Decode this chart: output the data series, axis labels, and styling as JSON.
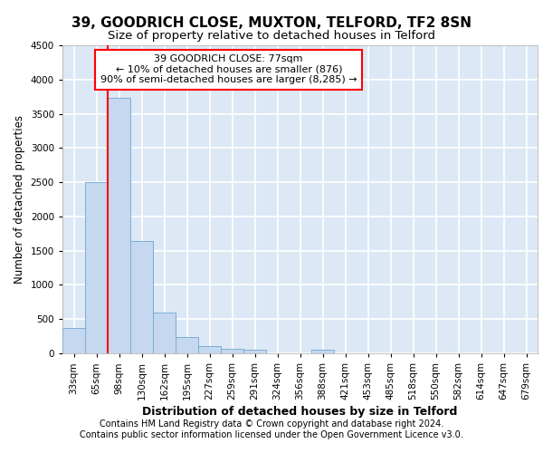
{
  "title1": "39, GOODRICH CLOSE, MUXTON, TELFORD, TF2 8SN",
  "title2": "Size of property relative to detached houses in Telford",
  "xlabel": "Distribution of detached houses by size in Telford",
  "ylabel": "Number of detached properties",
  "footnote1": "Contains HM Land Registry data © Crown copyright and database right 2024.",
  "footnote2": "Contains public sector information licensed under the Open Government Licence v3.0.",
  "bin_labels": [
    "33sqm",
    "65sqm",
    "98sqm",
    "130sqm",
    "162sqm",
    "195sqm",
    "227sqm",
    "259sqm",
    "291sqm",
    "324sqm",
    "356sqm",
    "388sqm",
    "421sqm",
    "453sqm",
    "485sqm",
    "518sqm",
    "550sqm",
    "582sqm",
    "614sqm",
    "647sqm",
    "679sqm"
  ],
  "bar_values": [
    370,
    2500,
    3730,
    1640,
    600,
    235,
    110,
    65,
    50,
    0,
    0,
    50,
    0,
    0,
    0,
    0,
    0,
    0,
    0,
    0,
    0
  ],
  "bar_color": "#c5d8ef",
  "bar_edge_color": "#7baed4",
  "red_line_x": 1.5,
  "annotation_line1": "39 GOODRICH CLOSE: 77sqm",
  "annotation_line2": "← 10% of detached houses are smaller (876)",
  "annotation_line3": "90% of semi-detached houses are larger (8,285) →",
  "ylim": [
    0,
    4500
  ],
  "yticks": [
    0,
    500,
    1000,
    1500,
    2000,
    2500,
    3000,
    3500,
    4000,
    4500
  ],
  "background_color": "#dce8f5",
  "grid_color": "#ffffff",
  "title1_fontsize": 11,
  "title2_fontsize": 9.5,
  "xlabel_fontsize": 9,
  "ylabel_fontsize": 8.5,
  "tick_fontsize": 7.5,
  "footnote_fontsize": 7
}
